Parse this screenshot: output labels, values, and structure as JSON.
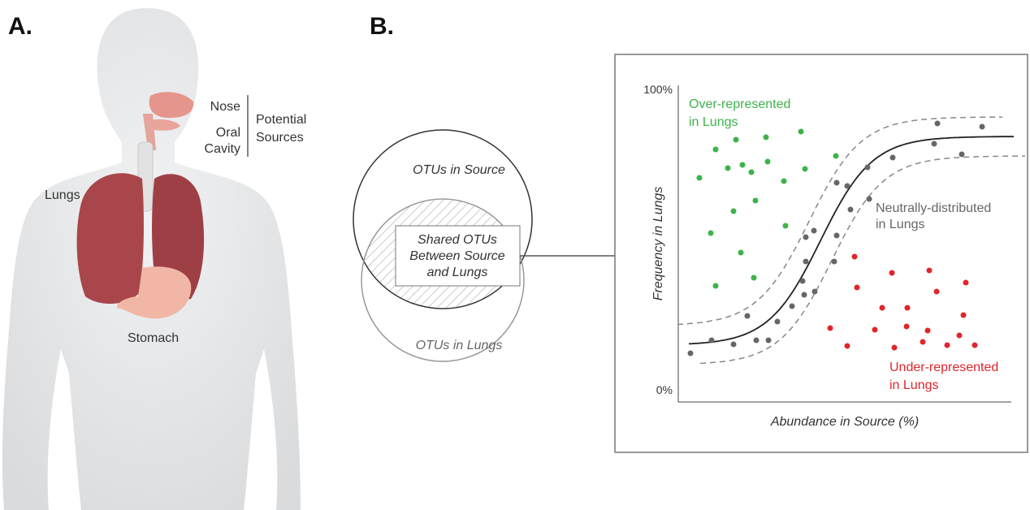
{
  "panel_a": {
    "label": "A.",
    "nose": "Nose",
    "oral_cavity": [
      "Oral",
      "Cavity"
    ],
    "potential_sources": [
      "Potential",
      "Sources"
    ],
    "lungs": "Lungs",
    "stomach": "Stomach"
  },
  "panel_b": {
    "label": "B.",
    "venn": {
      "source": "OTUs in Source",
      "lungs": "OTUs in Lungs",
      "shared": [
        "Shared OTUs",
        "Between Source",
        "and Lungs"
      ]
    },
    "plot": {
      "y_top": "100%",
      "y_bottom": "0%",
      "y_title": "Frequency in Lungs",
      "x_title": "Abundance in Source (%)",
      "over": [
        "Over-represented",
        "in Lungs"
      ],
      "neutral": [
        "Neutrally-distributed",
        "in Lungs"
      ],
      "under": [
        "Under-represented",
        "in Lungs"
      ]
    }
  }
}
